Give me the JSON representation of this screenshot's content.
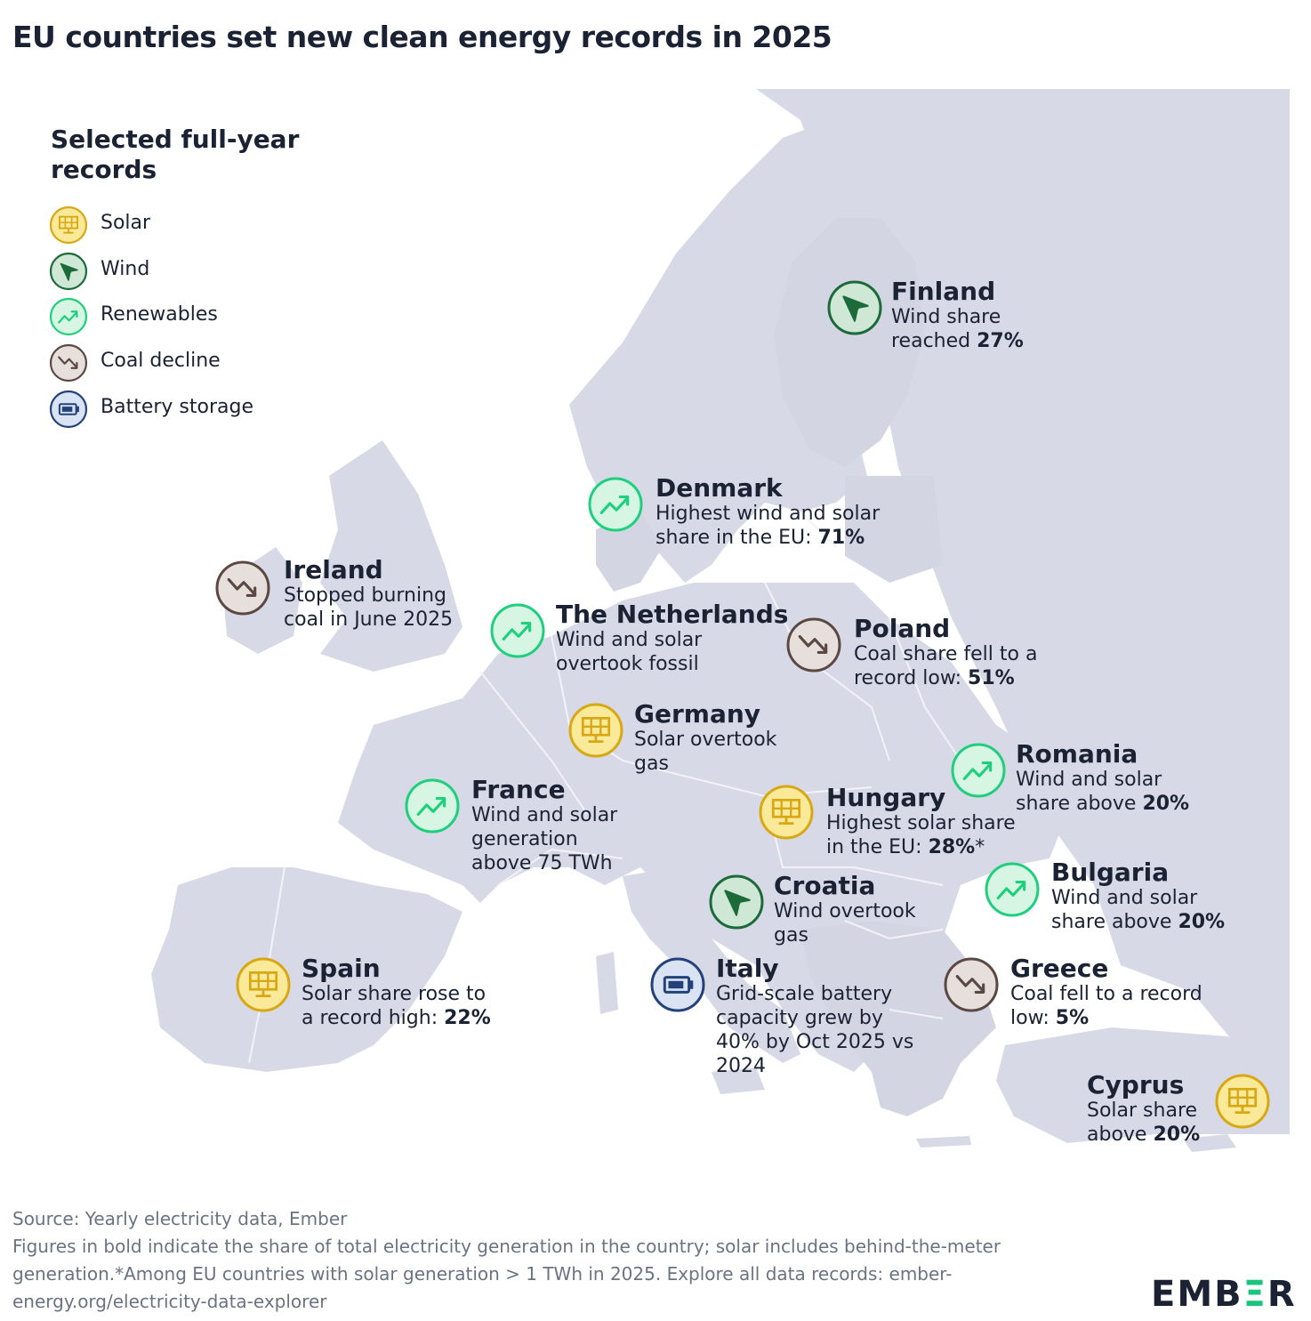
{
  "title": "EU countries set new clean energy records in 2025",
  "legend": {
    "title": "Selected full-year records",
    "items": [
      {
        "type": "solar",
        "label": "Solar",
        "icon": "solar-panel-icon"
      },
      {
        "type": "wind",
        "label": "Wind",
        "icon": "wind-turbine-icon"
      },
      {
        "type": "renewables",
        "label": "Renewables",
        "icon": "trend-up-icon"
      },
      {
        "type": "coal",
        "label": "Coal decline",
        "icon": "trend-down-icon"
      },
      {
        "type": "battery",
        "label": "Battery storage",
        "icon": "battery-icon"
      }
    ]
  },
  "colors": {
    "solar": {
      "fill": "#fbe99a",
      "stroke": "#d8a814"
    },
    "wind": {
      "fill": "#cfe8d6",
      "stroke": "#1c6a3a"
    },
    "renewables": {
      "fill": "#d6f6e3",
      "stroke": "#1fcf7d"
    },
    "coal": {
      "fill": "#e6dfdc",
      "stroke": "#5b4842"
    },
    "battery": {
      "fill": "#d9e3f3",
      "stroke": "#24427a"
    },
    "land": "#d7d9e6",
    "sea": "#eceef4",
    "border": "#f4f5f9",
    "brand_accent": "#1bc47d"
  },
  "annotations": [
    {
      "id": "finland",
      "country": "Finland",
      "type": "wind",
      "line1": "Wind share",
      "line2": "reached ",
      "line2_bold": "27%"
    },
    {
      "id": "denmark",
      "country": "Denmark",
      "type": "renewables",
      "line1": "Highest wind and solar",
      "line2": "share in the EU: ",
      "line2_bold": "71%"
    },
    {
      "id": "ireland",
      "country": "Ireland",
      "type": "coal",
      "line1": "Stopped burning",
      "line2": "coal in June 2025"
    },
    {
      "id": "netherlands",
      "country": "The Netherlands",
      "type": "renewables",
      "line1": "Wind and solar",
      "line2": "overtook fossil"
    },
    {
      "id": "poland",
      "country": "Poland",
      "type": "coal",
      "line1": "Coal share fell to a",
      "line2": "record low: ",
      "line2_bold": "51%"
    },
    {
      "id": "germany",
      "country": "Germany",
      "type": "solar",
      "line1": "Solar overtook",
      "line2": "gas"
    },
    {
      "id": "romania",
      "country": "Romania",
      "type": "renewables",
      "line1": "Wind and solar",
      "line2": "share above ",
      "line2_bold": "20%"
    },
    {
      "id": "hungary",
      "country": "Hungary",
      "type": "solar",
      "line1": "Highest solar share",
      "line2": "in the EU: ",
      "line2_bold": "28%",
      "line2_after": "*"
    },
    {
      "id": "france",
      "country": "France",
      "type": "renewables",
      "line1": "Wind and solar",
      "line2": "generation",
      "line3": "above 75 TWh"
    },
    {
      "id": "bulgaria",
      "country": "Bulgaria",
      "type": "renewables",
      "line1": "Wind and solar",
      "line2": "share above ",
      "line2_bold": "20%"
    },
    {
      "id": "croatia",
      "country": "Croatia",
      "type": "wind",
      "line1": "Wind overtook",
      "line2": "gas"
    },
    {
      "id": "spain",
      "country": "Spain",
      "type": "solar",
      "line1": "Solar share rose to",
      "line2": "a record high: ",
      "line2_bold": "22%"
    },
    {
      "id": "italy",
      "country": "Italy",
      "type": "battery",
      "line1": "Grid-scale battery",
      "line2": "capacity grew by",
      "line3": "40% by Oct 2025 vs",
      "line4": "2024"
    },
    {
      "id": "greece",
      "country": "Greece",
      "type": "coal",
      "line1": "Coal fell to a record",
      "line2": "low: ",
      "line2_bold": "5%"
    },
    {
      "id": "cyprus",
      "country": "Cyprus",
      "type": "solar",
      "line1": "Solar share",
      "line2": "above ",
      "line2_bold": "20%"
    }
  ],
  "footer": {
    "source": "Source: Yearly electricity data, Ember",
    "note1": "Figures in bold indicate the share of total electricity generation in the country; solar includes behind-the-meter",
    "note2": "generation.*Among EU countries with solar generation > 1 TWh in 2025. Explore all data records: ember-",
    "note3": "energy.org/electricity-data-explorer"
  },
  "brand": {
    "left": "EMB",
    "mid": "Ξ",
    "right": "R"
  }
}
